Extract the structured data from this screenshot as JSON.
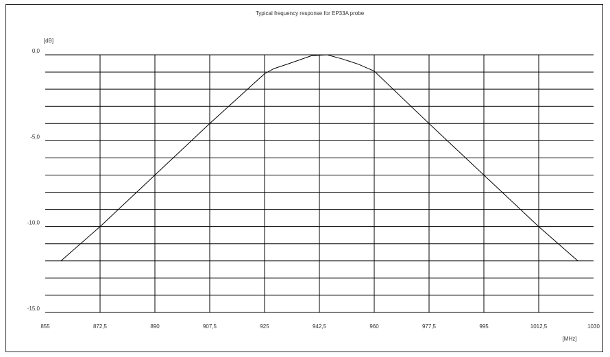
{
  "chart_data": {
    "type": "line",
    "title": "Typical frequency response for EP33A probe",
    "xlabel": "[MHz]",
    "ylabel": "[dB]",
    "xlim": [
      855,
      1030
    ],
    "ylim": [
      -15,
      0
    ],
    "x_ticks": [
      855,
      872.5,
      890,
      907.5,
      925,
      942.5,
      960,
      977.5,
      995,
      1012.5,
      1030
    ],
    "x_tick_labels": [
      "855",
      "872,5",
      "890",
      "907,5",
      "925",
      "942,5",
      "960",
      "977,5",
      "995",
      "1012,5",
      "1030"
    ],
    "y_ticks": [
      0,
      -5,
      -10,
      -15
    ],
    "y_tick_labels": [
      "0,0",
      "-5,0",
      "-10,0",
      "-15,0"
    ],
    "y_grid_step": 1,
    "grid": true,
    "series": [
      {
        "x": [
          860,
          872.5,
          890,
          907.5,
          925,
          928,
          933,
          940,
          945,
          950,
          955,
          960,
          977.5,
          995,
          1012.5,
          1025
        ],
        "y": [
          -12,
          -10,
          -7,
          -4,
          -1.1,
          -0.8,
          -0.5,
          -0.05,
          0,
          -0.25,
          -0.55,
          -0.95,
          -4,
          -7,
          -10,
          -12
        ]
      }
    ],
    "colors": {
      "line": "#000000",
      "grid": "#000000",
      "text": "#333333"
    }
  }
}
